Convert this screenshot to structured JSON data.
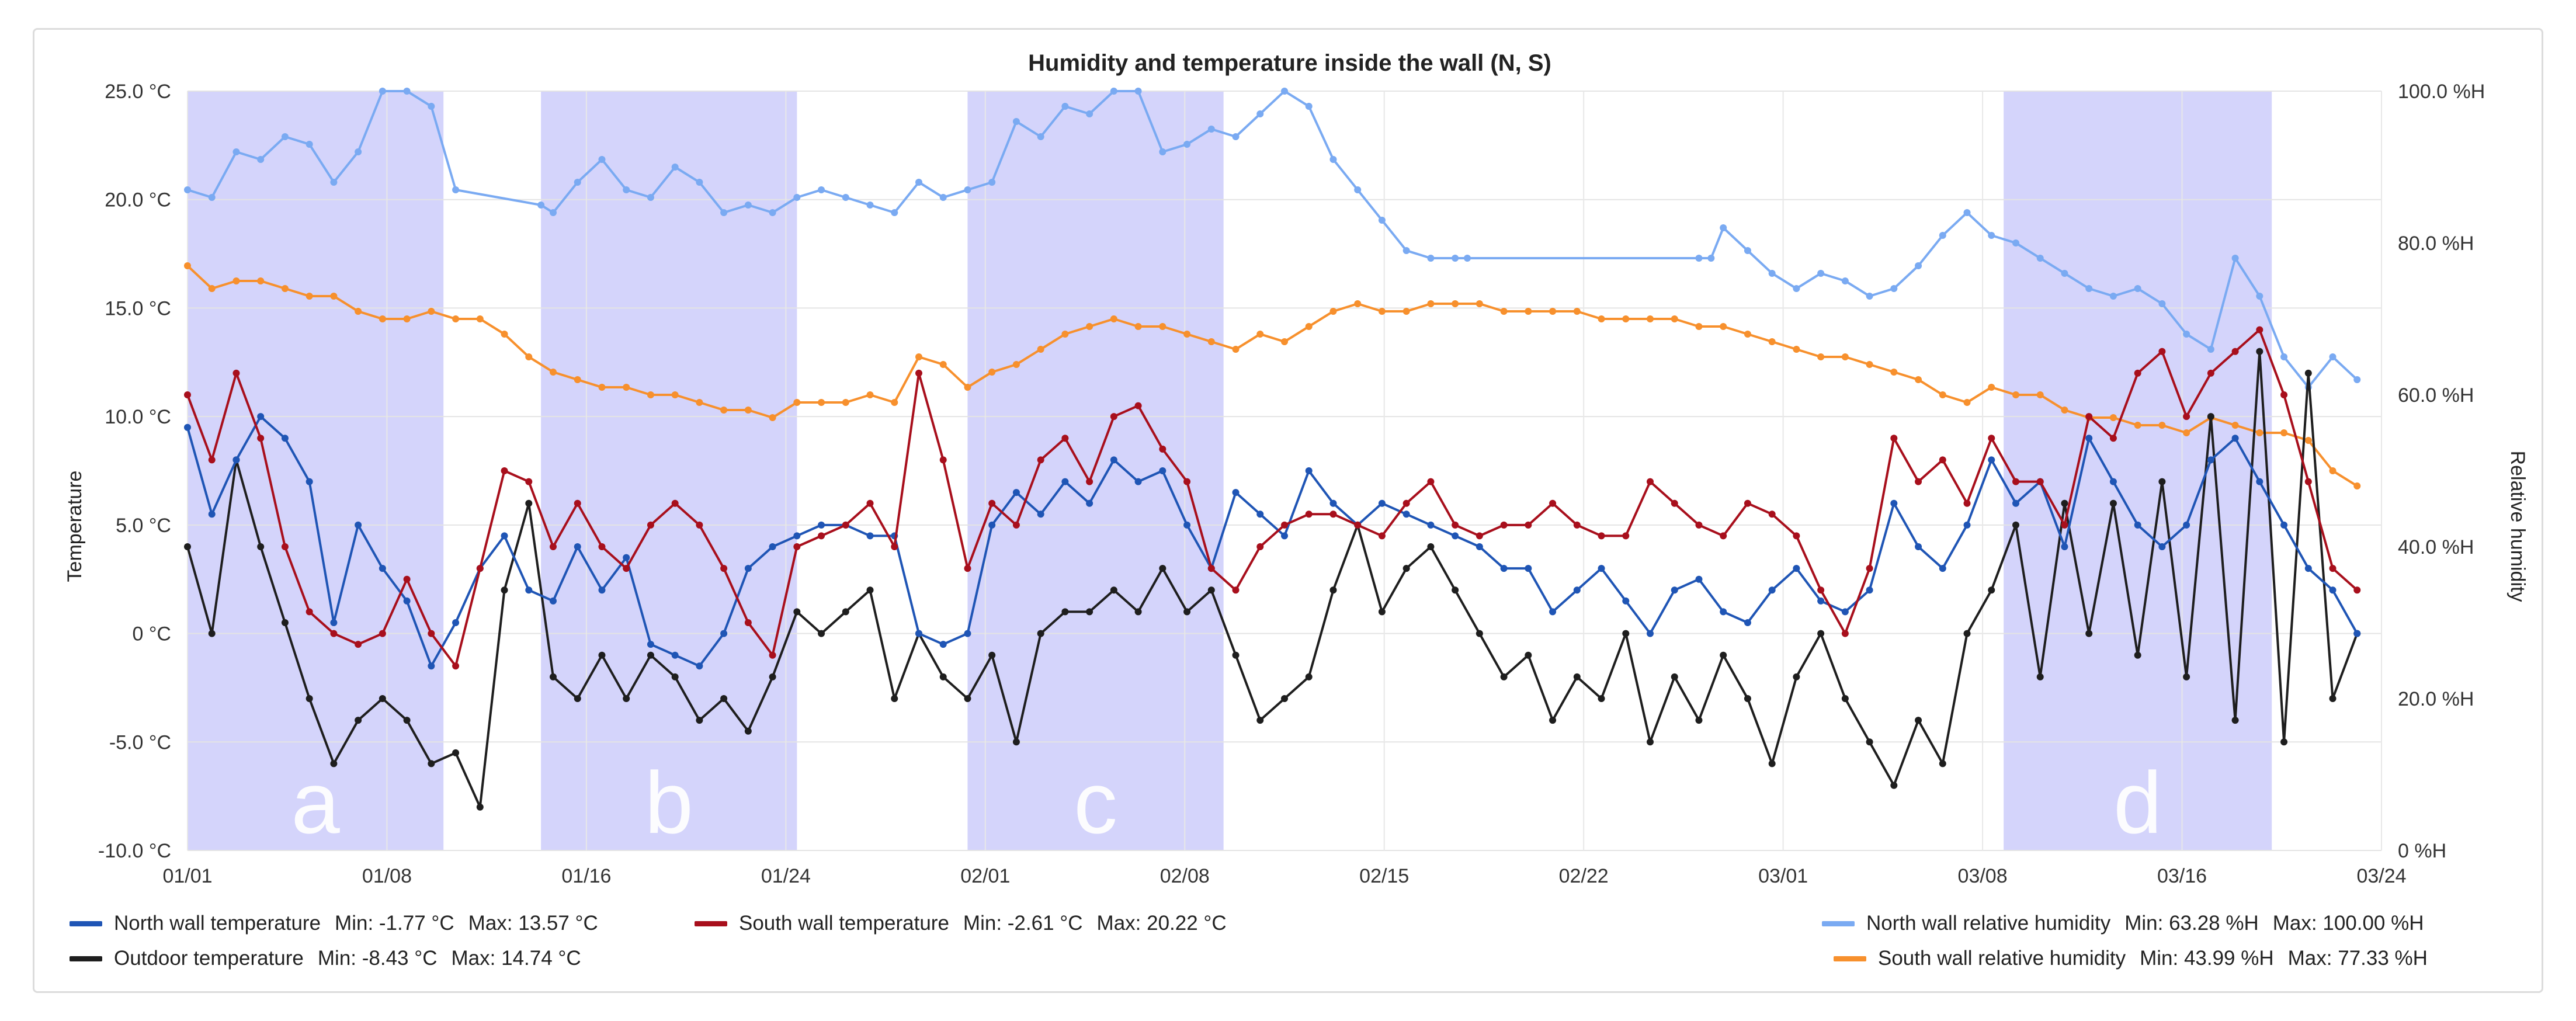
{
  "chart_data": {
    "type": "line",
    "title": "Humidity and temperature inside the wall (N, S)",
    "xlabel": "",
    "ylabel": "Temperature",
    "y2label": "Relative humidity",
    "x_ticks": [
      "01/01",
      "01/08",
      "01/16",
      "01/24",
      "02/01",
      "02/08",
      "02/15",
      "02/22",
      "03/01",
      "03/08",
      "03/16",
      "03/24"
    ],
    "y_ticks": [
      "25.0 °C",
      "20.0 °C",
      "15.0 °C",
      "10.0 °C",
      "5.0 °C",
      "0 °C",
      "-5.0 °C",
      "-10.0 °C"
    ],
    "y2_ticks": [
      "100.0 %H",
      "80.0 %H",
      "60.0 %H",
      "40.0 %H",
      "20.0 %H",
      "0 %H"
    ],
    "ylim": [
      -10,
      25
    ],
    "y2lim": [
      0,
      100
    ],
    "xlim_days": [
      0,
      90
    ],
    "shaded_periods": [
      {
        "label": "a",
        "start_day": 0,
        "end_day": 10.5
      },
      {
        "label": "b",
        "start_day": 14.5,
        "end_day": 25
      },
      {
        "label": "c",
        "start_day": 32,
        "end_day": 42.5
      },
      {
        "label": "d",
        "start_day": 74.5,
        "end_day": 85.5
      }
    ],
    "series": [
      {
        "name": "North wall temperature",
        "axis": "left",
        "color": "#1f55b5",
        "days": [
          0,
          1,
          2,
          3,
          4,
          5,
          6,
          7,
          8,
          9,
          10,
          11,
          12,
          13,
          14,
          15,
          16,
          17,
          18,
          19,
          20,
          21,
          22,
          23,
          24,
          25,
          26,
          27,
          28,
          29,
          30,
          31,
          32,
          33,
          34,
          35,
          36,
          37,
          38,
          39,
          40,
          41,
          42,
          43,
          44,
          45,
          46,
          47,
          48,
          49,
          50,
          51,
          52,
          53,
          54,
          55,
          56,
          57,
          58,
          59,
          60,
          61,
          62,
          63,
          64,
          65,
          66,
          67,
          68,
          69,
          70,
          71,
          72,
          73,
          74,
          75,
          76,
          77,
          78,
          79,
          80,
          81,
          82,
          83,
          84,
          85,
          86,
          87,
          88,
          89
        ],
        "values": [
          9.5,
          5.5,
          8,
          10,
          9,
          7,
          0.5,
          5,
          3,
          1.5,
          -1.5,
          0.5,
          3,
          4.5,
          2,
          1.5,
          4,
          2,
          3.5,
          -0.5,
          -1,
          -1.5,
          0,
          3,
          4,
          4.5,
          5,
          5,
          4.5,
          4.5,
          0,
          -0.5,
          0,
          5,
          6.5,
          5.5,
          7,
          6,
          8,
          7,
          7.5,
          5,
          3,
          6.5,
          5.5,
          4.5,
          7.5,
          6,
          5,
          6,
          5.5,
          5,
          4.5,
          4,
          3,
          3,
          1,
          2,
          3,
          1.5,
          0,
          2,
          2.5,
          1,
          0.5,
          2,
          3,
          1.5,
          1,
          2,
          6,
          4,
          3,
          5,
          8,
          6,
          7,
          4,
          9,
          7,
          5,
          4,
          5,
          8,
          9,
          7,
          5,
          3,
          2,
          0
        ]
      },
      {
        "name": "South wall temperature",
        "axis": "left",
        "color": "#a80f1c",
        "days": [
          0,
          1,
          2,
          3,
          4,
          5,
          6,
          7,
          8,
          9,
          10,
          11,
          12,
          13,
          14,
          15,
          16,
          17,
          18,
          19,
          20,
          21,
          22,
          23,
          24,
          25,
          26,
          27,
          28,
          29,
          30,
          31,
          32,
          33,
          34,
          35,
          36,
          37,
          38,
          39,
          40,
          41,
          42,
          43,
          44,
          45,
          46,
          47,
          48,
          49,
          50,
          51,
          52,
          53,
          54,
          55,
          56,
          57,
          58,
          59,
          60,
          61,
          62,
          63,
          64,
          65,
          66,
          67,
          68,
          69,
          70,
          71,
          72,
          73,
          74,
          75,
          76,
          77,
          78,
          79,
          80,
          81,
          82,
          83,
          84,
          85,
          86,
          87,
          88,
          89
        ],
        "values": [
          11,
          8,
          12,
          9,
          4,
          1,
          0,
          -0.5,
          0,
          2.5,
          0,
          -1.5,
          3,
          7.5,
          7,
          4,
          6,
          4,
          3,
          5,
          6,
          5,
          3,
          0.5,
          -1,
          4,
          4.5,
          5,
          6,
          4,
          12,
          8,
          3,
          6,
          5,
          8,
          9,
          7,
          10,
          10.5,
          8.5,
          7,
          3,
          2,
          4,
          5,
          5.5,
          5.5,
          5,
          4.5,
          6,
          7,
          5,
          4.5,
          5,
          5,
          6,
          5,
          4.5,
          4.5,
          7,
          6,
          5,
          4.5,
          6,
          5.5,
          4.5,
          2,
          0,
          3,
          9,
          7,
          8,
          6,
          9,
          7,
          7,
          5,
          10,
          9,
          12,
          13,
          10,
          12,
          13,
          14,
          11,
          7,
          3,
          2
        ]
      },
      {
        "name": "Outdoor temperature",
        "axis": "left",
        "color": "#1e1e1e",
        "days": [
          0,
          1,
          2,
          3,
          4,
          5,
          6,
          7,
          8,
          9,
          10,
          11,
          12,
          13,
          14,
          15,
          16,
          17,
          18,
          19,
          20,
          21,
          22,
          23,
          24,
          25,
          26,
          27,
          28,
          29,
          30,
          31,
          32,
          33,
          34,
          35,
          36,
          37,
          38,
          39,
          40,
          41,
          42,
          43,
          44,
          45,
          46,
          47,
          48,
          49,
          50,
          51,
          52,
          53,
          54,
          55,
          56,
          57,
          58,
          59,
          60,
          61,
          62,
          63,
          64,
          65,
          66,
          67,
          68,
          69,
          70,
          71,
          72,
          73,
          74,
          75,
          76,
          77,
          78,
          79,
          80,
          81,
          82,
          83,
          84,
          85,
          86,
          87,
          88,
          89
        ],
        "values": [
          4,
          0,
          8,
          4,
          0.5,
          -3,
          -6,
          -4,
          -3,
          -4,
          -6,
          -5.5,
          -8,
          2,
          6,
          -2,
          -3,
          -1,
          -3,
          -1,
          -2,
          -4,
          -3,
          -4.5,
          -2,
          1,
          0,
          1,
          2,
          -3,
          0,
          -2,
          -3,
          -1,
          -5,
          0,
          1,
          1,
          2,
          1,
          3,
          1,
          2,
          -1,
          -4,
          -3,
          -2,
          2,
          5,
          1,
          3,
          4,
          2,
          0,
          -2,
          -1,
          -4,
          -2,
          -3,
          0,
          -5,
          -2,
          -4,
          -1,
          -3,
          -6,
          -2,
          0,
          -3,
          -5,
          -7,
          -4,
          -6,
          0,
          2,
          5,
          -2,
          6,
          0,
          6,
          -1,
          7,
          -2,
          10,
          -4,
          13,
          -5,
          12,
          -3,
          0
        ]
      },
      {
        "name": "North wall relative humidity",
        "axis": "right",
        "color": "#7aaaf2",
        "days": [
          0,
          1,
          2,
          3,
          4,
          5,
          6,
          7,
          8,
          9,
          10,
          11,
          14.5,
          15,
          16,
          17,
          18,
          19,
          20,
          21,
          22,
          23,
          24,
          25,
          26,
          27,
          28,
          29,
          30,
          31,
          32,
          33,
          34,
          35,
          36,
          37,
          38,
          39,
          40,
          41,
          42,
          43,
          44,
          45,
          46,
          47,
          48,
          49,
          50,
          51,
          52,
          52.5,
          62,
          62.5,
          63,
          64,
          65,
          66,
          67,
          68,
          69,
          70,
          71,
          72,
          73,
          74,
          75,
          76,
          77,
          78,
          79,
          80,
          81,
          82,
          83,
          84,
          85,
          86,
          87,
          88,
          89
        ],
        "values": [
          87,
          86,
          92,
          91,
          94,
          93,
          88,
          92,
          100,
          100,
          98,
          87,
          85,
          84,
          88,
          91,
          87,
          86,
          90,
          88,
          84,
          85,
          84,
          86,
          87,
          86,
          85,
          84,
          88,
          86,
          87,
          88,
          96,
          94,
          98,
          97,
          100,
          100,
          92,
          93,
          95,
          94,
          97,
          100,
          98,
          91,
          87,
          83,
          79,
          78,
          78,
          78,
          78,
          78,
          82,
          79,
          76,
          74,
          76,
          75,
          73,
          74,
          77,
          81,
          84,
          81,
          80,
          78,
          76,
          74,
          73,
          74,
          72,
          68,
          66,
          78,
          73,
          65,
          61,
          65,
          62
        ]
      },
      {
        "name": "South wall relative humidity",
        "axis": "right",
        "color": "#f7902d",
        "days": [
          0,
          1,
          2,
          3,
          4,
          5,
          6,
          7,
          8,
          9,
          10,
          11,
          12,
          13,
          14,
          15,
          16,
          17,
          18,
          19,
          20,
          21,
          22,
          23,
          24,
          25,
          26,
          27,
          28,
          29,
          30,
          31,
          32,
          33,
          34,
          35,
          36,
          37,
          38,
          39,
          40,
          41,
          42,
          43,
          44,
          45,
          46,
          47,
          48,
          49,
          50,
          51,
          52,
          53,
          54,
          55,
          56,
          57,
          58,
          59,
          60,
          61,
          62,
          63,
          64,
          65,
          66,
          67,
          68,
          69,
          70,
          71,
          72,
          73,
          74,
          75,
          76,
          77,
          78,
          79,
          80,
          81,
          82,
          83,
          84,
          85,
          86,
          87,
          88,
          89
        ],
        "values": [
          77,
          74,
          75,
          75,
          74,
          73,
          73,
          71,
          70,
          70,
          71,
          70,
          70,
          68,
          65,
          63,
          62,
          61,
          61,
          60,
          60,
          59,
          58,
          58,
          57,
          59,
          59,
          59,
          60,
          59,
          65,
          64,
          61,
          63,
          64,
          66,
          68,
          69,
          70,
          69,
          69,
          68,
          67,
          66,
          68,
          67,
          69,
          71,
          72,
          71,
          71,
          72,
          72,
          72,
          71,
          71,
          71,
          71,
          70,
          70,
          70,
          70,
          69,
          69,
          68,
          67,
          66,
          65,
          65,
          64,
          63,
          62,
          60,
          59,
          61,
          60,
          60,
          58,
          57,
          57,
          56,
          56,
          55,
          57,
          56,
          55,
          55,
          54,
          50,
          48
        ]
      }
    ]
  },
  "legend": {
    "north_temp": {
      "label": "North wall temperature",
      "min": "Min: -1.77 °C",
      "max": "Max: 13.57 °C"
    },
    "south_temp": {
      "label": "South wall temperature",
      "min": "Min: -2.61 °C",
      "max": "Max: 20.22 °C"
    },
    "outdoor_temp": {
      "label": "Outdoor temperature",
      "min": "Min: -8.43 °C",
      "max": "Max: 14.74 °C"
    },
    "north_rh": {
      "label": "North wall relative humidity",
      "min": "Min: 63.28 %H",
      "max": "Max: 100.00 %H"
    },
    "south_rh": {
      "label": "South wall relative humidity",
      "min": "Min: 43.99 %H",
      "max": "Max: 77.33 %H"
    }
  },
  "colors": {
    "north_temp": "#1f55b5",
    "south_temp": "#a80f1c",
    "outdoor": "#1e1e1e",
    "north_rh": "#7aaaf2",
    "south_rh": "#f7902d",
    "band": "#d4d4fb"
  }
}
